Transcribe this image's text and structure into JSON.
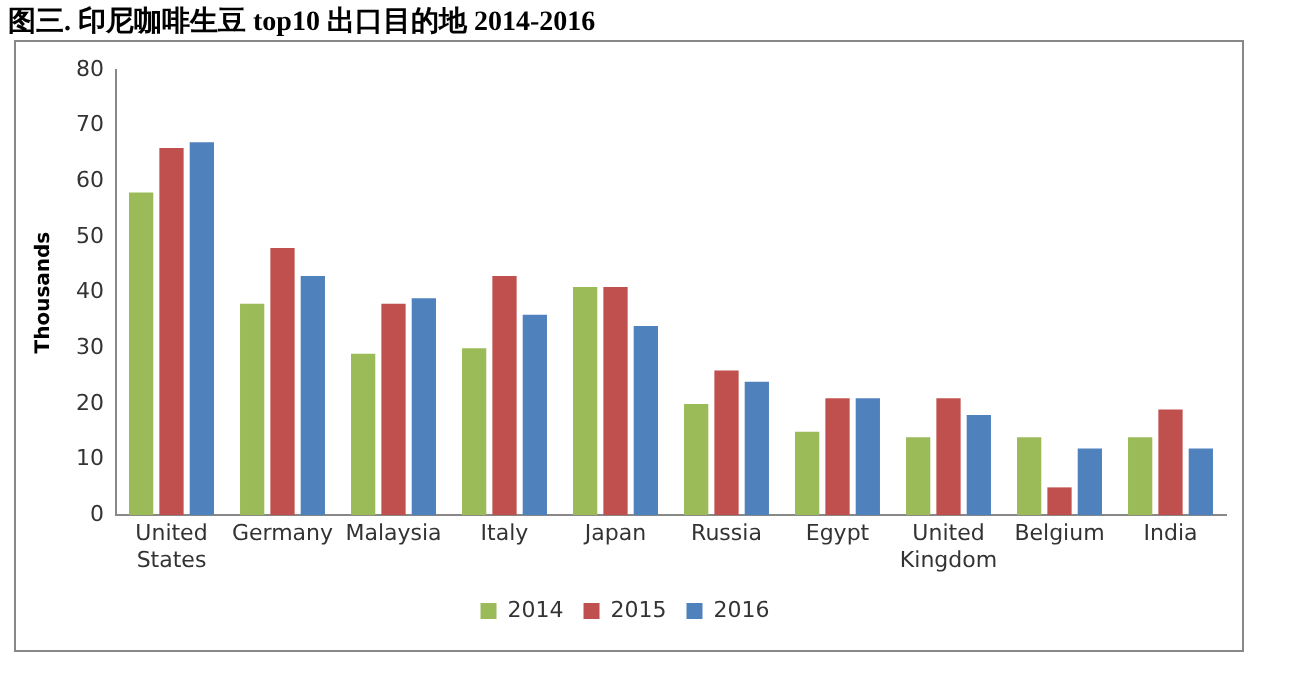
{
  "chart_data": {
    "type": "bar",
    "title": "图三. 印尼咖啡生豆 top10 出口目的地 2014-2016",
    "ylabel": "Thousands",
    "categories": [
      "United States",
      "Germany",
      "Malaysia",
      "Italy",
      "Japan",
      "Russia",
      "Egypt",
      "United Kingdom",
      "Belgium",
      "India"
    ],
    "series": [
      {
        "name": "2014",
        "color": "#9bbb59",
        "values": [
          58,
          38,
          29,
          30,
          41,
          20,
          15,
          14,
          14,
          14
        ]
      },
      {
        "name": "2015",
        "color": "#c0504d",
        "values": [
          66,
          48,
          38,
          43,
          41,
          26,
          21,
          21,
          5,
          19
        ]
      },
      {
        "name": "2016",
        "color": "#4f81bd",
        "values": [
          67,
          43,
          39,
          36,
          34,
          24,
          21,
          18,
          12,
          12
        ]
      }
    ],
    "ylim": [
      0,
      80
    ],
    "yticks": [
      0,
      10,
      20,
      30,
      40,
      50,
      60,
      70,
      80
    ],
    "grid": false,
    "legend": "bottom"
  }
}
